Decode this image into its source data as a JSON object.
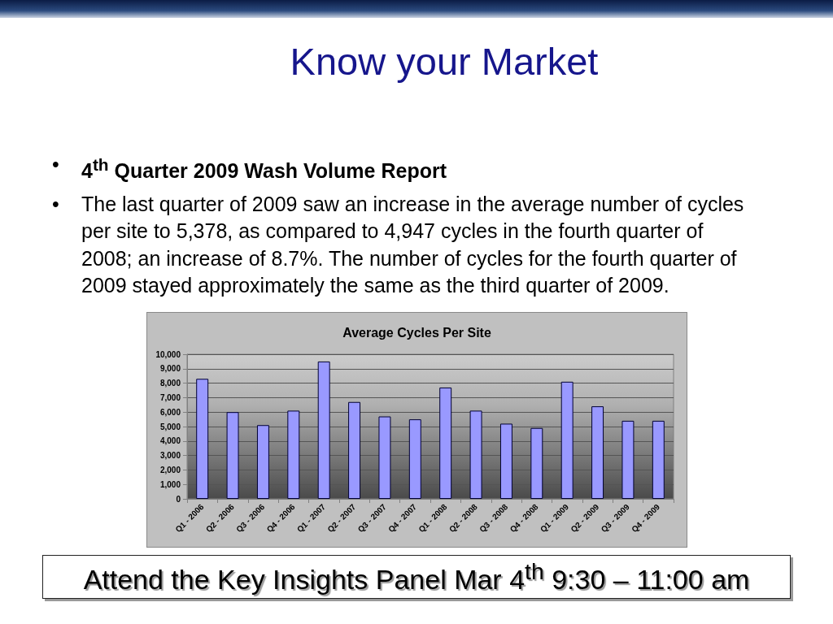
{
  "chart_data": {
    "type": "bar",
    "title": "Average Cycles Per Site",
    "annotations": [
      "Know your Market",
      "•",
      "4$^{th}$ Quarter 2009 Wash Volume Report",
      "•",
      "The last quarter of 2009 saw an increase in the average number of cycles per site to 5,378, as compared to 4,947 cycles in the fourth quarter of 2008; an increase of 8.7%. The number of cycles for the fourth quarter of 2009 stayed approximately the same as the third quarter of 2009.",
      "Attend the Key Insights Panel Mar 4$^{th}$ 9:30 – 11:00 am"
    ],
    "categories": [
      "Q1 - 2006",
      "Q2 - 2006",
      "Q3 - 2006",
      "Q4 - 2006",
      "Q1 - 2007",
      "Q2 - 2007",
      "Q3 - 2007",
      "Q4 - 2007",
      "Q1 - 2008",
      "Q2 - 2008",
      "Q3 - 2008",
      "Q4 - 2008",
      "Q1 - 2009",
      "Q2 - 2009",
      "Q3 - 2009",
      "Q4 - 2009"
    ],
    "values": [
      8300,
      6000,
      5100,
      6100,
      9500,
      6700,
      5700,
      5500,
      7700,
      6100,
      5200,
      4900,
      8100,
      6400,
      5400,
      5400
    ],
    "color": "#9999ff",
    "ylim": [
      0,
      10000
    ],
    "yticks": [
      0,
      {
        "value": 1000,
        "label": "1,000"
      },
      {
        "value": 2000,
        "label": "2,000"
      },
      {
        "value": 3000,
        "label": "3,000"
      },
      {
        "value": 4000,
        "label": "4,000"
      },
      {
        "value": 5000,
        "label": "5,000"
      },
      {
        "value": 6000,
        "label": "6,000"
      },
      {
        "value": 7000,
        "label": "7,000"
      },
      {
        "value": 8000,
        "label": "8,000"
      },
      {
        "value": 9000,
        "label": "9,000"
      },
      {
        "value": 10000,
        "label": "10,000"
      }
    ],
    "grid": "y"
  }
}
